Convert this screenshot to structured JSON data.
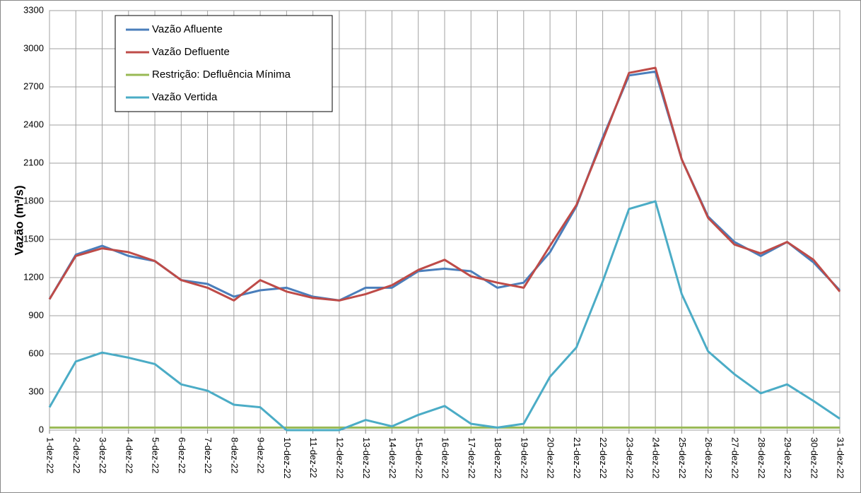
{
  "chart_data": {
    "type": "line",
    "ylabel": "Vazão (m³/s)",
    "categories": [
      "1-dez-22",
      "2-dez-22",
      "3-dez-22",
      "4-dez-22",
      "5-dez-22",
      "6-dez-22",
      "7-dez-22",
      "8-dez-22",
      "9-dez-22",
      "10-dez-22",
      "11-dez-22",
      "12-dez-22",
      "13-dez-22",
      "14-dez-22",
      "15-dez-22",
      "16-dez-22",
      "17-dez-22",
      "18-dez-22",
      "19-dez-22",
      "20-dez-22",
      "21-dez-22",
      "22-dez-22",
      "23-dez-22",
      "24-dez-22",
      "25-dez-22",
      "26-dez-22",
      "27-dez-22",
      "28-dez-22",
      "29-dez-22",
      "30-dez-22",
      "31-dez-22"
    ],
    "series": [
      {
        "name": "Vazão Afluente",
        "color": "#4a7ebb",
        "values": [
          1030,
          1380,
          1450,
          1370,
          1330,
          1180,
          1150,
          1050,
          1100,
          1120,
          1050,
          1020,
          1120,
          1120,
          1250,
          1270,
          1250,
          1120,
          1160,
          1400,
          1760,
          2300,
          2790,
          2820,
          2130,
          1680,
          1480,
          1370,
          1480,
          1320,
          1100
        ]
      },
      {
        "name": "Vazão Defluente",
        "color": "#be4b48",
        "values": [
          1030,
          1370,
          1430,
          1400,
          1330,
          1180,
          1120,
          1020,
          1180,
          1090,
          1040,
          1020,
          1070,
          1140,
          1260,
          1340,
          1210,
          1160,
          1120,
          1450,
          1770,
          2280,
          2810,
          2850,
          2130,
          1670,
          1460,
          1390,
          1480,
          1340,
          1090
        ]
      },
      {
        "name": "Restrição: Defluência Mínima",
        "color": "#98b954",
        "values": [
          20,
          20,
          20,
          20,
          20,
          20,
          20,
          20,
          20,
          20,
          20,
          20,
          20,
          20,
          20,
          20,
          20,
          20,
          20,
          20,
          20,
          20,
          20,
          20,
          20,
          20,
          20,
          20,
          20,
          20,
          20
        ]
      },
      {
        "name": "Vazão Vertida",
        "color": "#4bacc6",
        "values": [
          180,
          540,
          610,
          570,
          520,
          360,
          310,
          200,
          180,
          0,
          0,
          0,
          80,
          30,
          120,
          190,
          50,
          20,
          50,
          420,
          650,
          1170,
          1740,
          1800,
          1070,
          620,
          440,
          290,
          360,
          230,
          90
        ]
      }
    ],
    "ylim": [
      0,
      3300
    ],
    "yticks": [
      0,
      300,
      600,
      900,
      1200,
      1500,
      1800,
      2100,
      2400,
      2700,
      3000,
      3300
    ],
    "grid": true,
    "legend": "upper left"
  }
}
